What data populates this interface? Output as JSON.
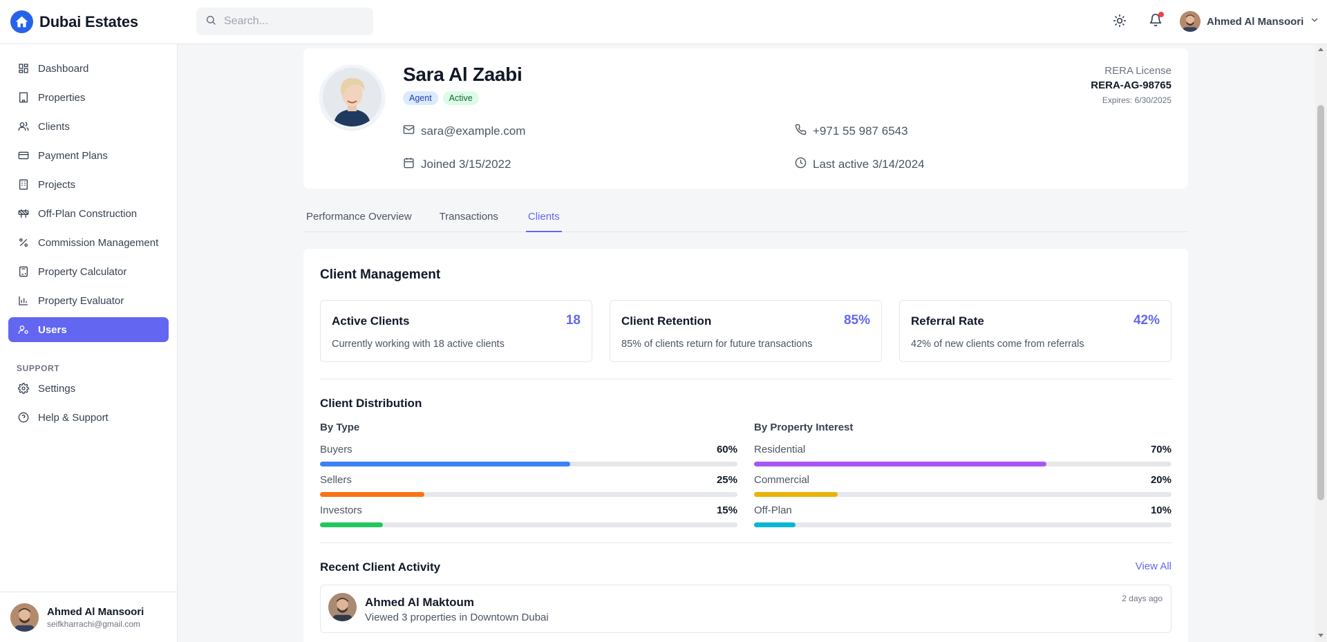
{
  "app": {
    "name": "Dubai Estates"
  },
  "search": {
    "placeholder": "Search..."
  },
  "header": {
    "user_name": "Ahmed Al Mansoori",
    "has_notification": true
  },
  "sidebar": {
    "items": [
      {
        "label": "Dashboard",
        "icon": "dashboard-icon"
      },
      {
        "label": "Properties",
        "icon": "building-icon"
      },
      {
        "label": "Clients",
        "icon": "users-icon"
      },
      {
        "label": "Payment Plans",
        "icon": "credit-card-icon"
      },
      {
        "label": "Projects",
        "icon": "projects-icon"
      },
      {
        "label": "Off-Plan Construction",
        "icon": "construction-icon"
      },
      {
        "label": "Commission Management",
        "icon": "percent-icon"
      },
      {
        "label": "Property Calculator",
        "icon": "calculator-icon"
      },
      {
        "label": "Property Evaluator",
        "icon": "bar-chart-icon"
      },
      {
        "label": "Users",
        "icon": "user-cog-icon",
        "active": true
      }
    ],
    "support_label": "SUPPORT",
    "support_items": [
      {
        "label": "Settings",
        "icon": "gear-icon"
      },
      {
        "label": "Help & Support",
        "icon": "help-circle-icon"
      }
    ],
    "user": {
      "name": "Ahmed Al Mansoori",
      "email": "seifkharrachi@gmail.com"
    }
  },
  "profile": {
    "name": "Sara Al Zaabi",
    "role_badge": "Agent",
    "status_badge": "Active",
    "email": "sara@example.com",
    "phone": "+971 55 987 6543",
    "joined": "Joined 3/15/2022",
    "last_active": "Last active 3/14/2024",
    "rera_label": "RERA License",
    "rera_number": "RERA-AG-98765",
    "rera_expiry": "Expires: 6/30/2025"
  },
  "tabs": [
    {
      "label": "Performance Overview",
      "active": false
    },
    {
      "label": "Transactions",
      "active": false
    },
    {
      "label": "Clients",
      "active": true
    }
  ],
  "client_management": {
    "title": "Client Management",
    "stats": [
      {
        "title": "Active Clients",
        "value": "18",
        "desc": "Currently working with 18 active clients"
      },
      {
        "title": "Client Retention",
        "value": "85%",
        "desc": "85% of clients return for future transactions"
      },
      {
        "title": "Referral Rate",
        "value": "42%",
        "desc": "42% of new clients come from referrals"
      }
    ],
    "distribution": {
      "title": "Client Distribution",
      "by_type": {
        "title": "By Type",
        "rows": [
          {
            "label": "Buyers",
            "pct": "60%",
            "value": 60,
            "color": "#3b82f6"
          },
          {
            "label": "Sellers",
            "pct": "25%",
            "value": 25,
            "color": "#f97316"
          },
          {
            "label": "Investors",
            "pct": "15%",
            "value": 15,
            "color": "#22c55e"
          }
        ]
      },
      "by_interest": {
        "title": "By Property Interest",
        "rows": [
          {
            "label": "Residential",
            "pct": "70%",
            "value": 70,
            "color": "#a855f7"
          },
          {
            "label": "Commercial",
            "pct": "20%",
            "value": 20,
            "color": "#eab308"
          },
          {
            "label": "Off-Plan",
            "pct": "10%",
            "value": 10,
            "color": "#06b6d4"
          }
        ]
      }
    },
    "recent_activity": {
      "title": "Recent Client Activity",
      "view_all": "View All",
      "items": [
        {
          "name": "Ahmed Al Maktoum",
          "desc": "Viewed 3 properties in Downtown Dubai",
          "time": "2 days ago"
        }
      ]
    }
  }
}
